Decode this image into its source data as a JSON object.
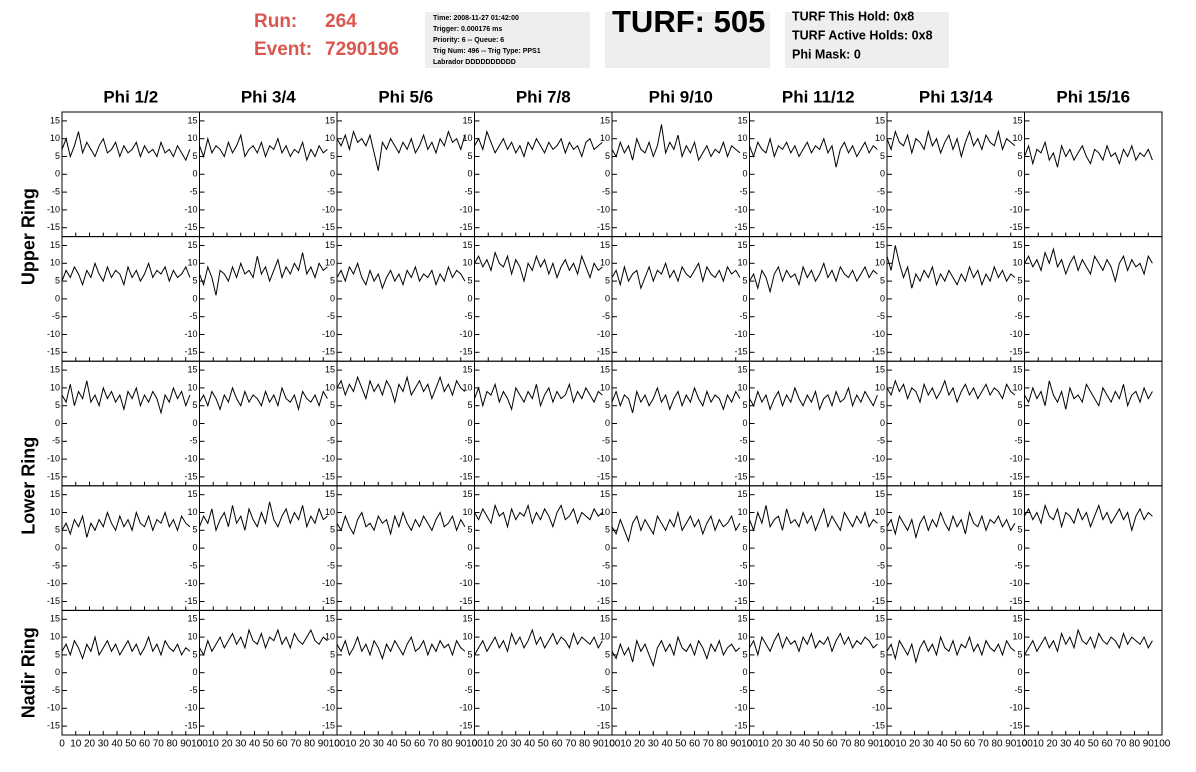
{
  "header": {
    "run_label": "Run:",
    "run": "264",
    "event_label": "Event:",
    "event": "7290196",
    "info": [
      "Time: 2008-11-27 01:42:00",
      "Trigger: 0.000176 ms",
      "Priority: 6 -- Queue: 6",
      "Trig Num: 496 -- Trig Type: PPS1",
      "Labrador DDDDDDDDDD"
    ],
    "turf": "TURF: 505",
    "holds": [
      "TURF This Hold: 0x8",
      "TURF Active Holds: 0x8",
      "Phi Mask: 0"
    ]
  },
  "grid": {
    "columns": [
      "Phi 1/2",
      "Phi 3/4",
      "Phi 5/6",
      "Phi 7/8",
      "Phi 9/10",
      "Phi 11/12",
      "Phi 13/14",
      "Phi 15/16"
    ],
    "rows": [
      "Upper Ring",
      "Lower Ring",
      "Nadir Ring"
    ],
    "xlim": [
      0,
      100
    ],
    "xticks": [
      0,
      10,
      20,
      30,
      40,
      50,
      60,
      70,
      80,
      90,
      100
    ],
    "ylim": [
      -17.5,
      17.5
    ],
    "yticks": [
      -15,
      -10,
      -5,
      0,
      5,
      10,
      15
    ],
    "x": [
      0,
      3,
      6,
      9,
      12,
      15,
      18,
      21,
      24,
      27,
      30,
      33,
      36,
      39,
      42,
      45,
      48,
      51,
      54,
      57,
      60,
      63,
      66,
      69,
      72,
      75,
      78,
      81,
      84,
      87,
      90,
      93
    ],
    "traces": [
      [
        7,
        10,
        5,
        8,
        12,
        6,
        9,
        7,
        5,
        8,
        10,
        6,
        7,
        9,
        5,
        8,
        6,
        7,
        9,
        5,
        8,
        6,
        7,
        5,
        9,
        6,
        7,
        5,
        8,
        6,
        4,
        7
      ],
      [
        8,
        5,
        10,
        6,
        8,
        7,
        5,
        9,
        6,
        8,
        11,
        5,
        7,
        8,
        6,
        9,
        5,
        8,
        7,
        10,
        6,
        8,
        5,
        7,
        6,
        9,
        4,
        7,
        5,
        8,
        6,
        7
      ],
      [
        10,
        8,
        11,
        7,
        12,
        9,
        10,
        8,
        11,
        6,
        1,
        9,
        7,
        10,
        8,
        6,
        9,
        7,
        10,
        6,
        8,
        11,
        7,
        9,
        6,
        10,
        8,
        12,
        9,
        10,
        7,
        11
      ],
      [
        8,
        10,
        7,
        12,
        9,
        6,
        8,
        10,
        7,
        9,
        6,
        8,
        5,
        9,
        7,
        10,
        8,
        6,
        9,
        7,
        8,
        10,
        6,
        9,
        7,
        8,
        5,
        9,
        10,
        7,
        8,
        9
      ],
      [
        7,
        5,
        9,
        6,
        8,
        4,
        10,
        7,
        6,
        9,
        5,
        8,
        14,
        6,
        9,
        7,
        11,
        5,
        8,
        6,
        9,
        4,
        6,
        8,
        5,
        7,
        6,
        9,
        5,
        8,
        7,
        6
      ],
      [
        8,
        5,
        9,
        7,
        6,
        10,
        5,
        8,
        7,
        9,
        6,
        8,
        5,
        7,
        9,
        6,
        8,
        7,
        10,
        6,
        8,
        2,
        7,
        9,
        6,
        8,
        5,
        7,
        9,
        6,
        8,
        7
      ],
      [
        10,
        7,
        12,
        9,
        8,
        11,
        6,
        10,
        9,
        7,
        12,
        8,
        10,
        6,
        9,
        11,
        7,
        10,
        5,
        9,
        12,
        8,
        10,
        7,
        11,
        9,
        8,
        12,
        7,
        10,
        9,
        8
      ],
      [
        5,
        8,
        3,
        7,
        6,
        9,
        4,
        6,
        2,
        8,
        5,
        7,
        4,
        6,
        8,
        5,
        3,
        7,
        6,
        4,
        8,
        5,
        6,
        3,
        7,
        5,
        8,
        4,
        6,
        5,
        7,
        4
      ],
      [
        5,
        8,
        6,
        9,
        7,
        4,
        8,
        6,
        10,
        7,
        5,
        9,
        6,
        8,
        7,
        4,
        9,
        6,
        8,
        5,
        7,
        10,
        6,
        8,
        7,
        9,
        5,
        8,
        6,
        7,
        9,
        6
      ],
      [
        7,
        4,
        9,
        6,
        1,
        8,
        7,
        5,
        9,
        6,
        10,
        7,
        8,
        6,
        12,
        7,
        9,
        5,
        8,
        11,
        6,
        9,
        7,
        10,
        8,
        13,
        7,
        9,
        6,
        10,
        8,
        9
      ],
      [
        6,
        8,
        5,
        9,
        7,
        10,
        6,
        4,
        8,
        5,
        7,
        3,
        6,
        8,
        5,
        7,
        4,
        8,
        6,
        9,
        5,
        7,
        6,
        8,
        4,
        7,
        5,
        9,
        6,
        8,
        7,
        5
      ],
      [
        10,
        12,
        9,
        11,
        8,
        13,
        10,
        9,
        12,
        7,
        11,
        9,
        5,
        10,
        8,
        12,
        9,
        11,
        7,
        10,
        6,
        9,
        11,
        8,
        10,
        7,
        12,
        9,
        6,
        10,
        8,
        9
      ],
      [
        6,
        8,
        4,
        9,
        5,
        7,
        8,
        3,
        6,
        9,
        5,
        8,
        7,
        10,
        6,
        8,
        5,
        9,
        7,
        6,
        8,
        10,
        5,
        9,
        7,
        6,
        8,
        5,
        9,
        7,
        8,
        6
      ],
      [
        5,
        7,
        3,
        8,
        6,
        2,
        7,
        9,
        5,
        8,
        6,
        7,
        4,
        9,
        6,
        8,
        5,
        7,
        10,
        6,
        8,
        5,
        9,
        7,
        6,
        8,
        5,
        7,
        9,
        6,
        8,
        7
      ],
      [
        12,
        8,
        15,
        10,
        6,
        9,
        3,
        7,
        5,
        8,
        6,
        9,
        4,
        7,
        5,
        8,
        6,
        4,
        7,
        5,
        9,
        6,
        8,
        4,
        7,
        5,
        9,
        6,
        8,
        5,
        7,
        6
      ],
      [
        10,
        12,
        9,
        11,
        8,
        13,
        10,
        14,
        9,
        11,
        7,
        10,
        12,
        8,
        11,
        9,
        7,
        12,
        10,
        8,
        11,
        9,
        5,
        10,
        12,
        8,
        11,
        9,
        10,
        7,
        12,
        10
      ],
      [
        8,
        6,
        11,
        5,
        9,
        7,
        12,
        6,
        8,
        5,
        10,
        7,
        9,
        6,
        8,
        4,
        9,
        7,
        10,
        5,
        8,
        6,
        9,
        7,
        3,
        8,
        6,
        10,
        7,
        9,
        5,
        8
      ],
      [
        6,
        8,
        5,
        9,
        7,
        4,
        8,
        6,
        10,
        7,
        5,
        9,
        6,
        8,
        7,
        5,
        9,
        6,
        8,
        5,
        10,
        7,
        6,
        8,
        4,
        9,
        7,
        6,
        8,
        5,
        9,
        7
      ],
      [
        10,
        12,
        8,
        11,
        9,
        13,
        10,
        7,
        12,
        9,
        11,
        8,
        12,
        10,
        6,
        11,
        9,
        13,
        8,
        10,
        12,
        9,
        11,
        7,
        10,
        13,
        9,
        11,
        8,
        12,
        10,
        9
      ],
      [
        7,
        10,
        5,
        9,
        8,
        11,
        6,
        9,
        7,
        4,
        10,
        8,
        6,
        9,
        7,
        11,
        5,
        8,
        10,
        6,
        9,
        7,
        8,
        11,
        6,
        9,
        7,
        10,
        8,
        6,
        9,
        8
      ],
      [
        6,
        9,
        5,
        8,
        7,
        3,
        9,
        6,
        8,
        5,
        7,
        10,
        6,
        8,
        4,
        7,
        9,
        5,
        8,
        6,
        10,
        7,
        5,
        9,
        6,
        8,
        7,
        4,
        8,
        6,
        9,
        7
      ],
      [
        7,
        5,
        9,
        6,
        8,
        4,
        7,
        9,
        5,
        8,
        6,
        10,
        7,
        5,
        8,
        6,
        9,
        4,
        7,
        8,
        5,
        9,
        6,
        7,
        10,
        5,
        8,
        6,
        9,
        7,
        5,
        8
      ],
      [
        10,
        8,
        12,
        9,
        11,
        7,
        10,
        9,
        6,
        11,
        8,
        10,
        7,
        9,
        12,
        8,
        10,
        6,
        9,
        11,
        8,
        10,
        7,
        9,
        11,
        8,
        10,
        9,
        7,
        11,
        9,
        8
      ],
      [
        8,
        6,
        10,
        7,
        9,
        5,
        12,
        8,
        6,
        9,
        4,
        10,
        7,
        8,
        6,
        11,
        9,
        7,
        5,
        10,
        8,
        6,
        9,
        7,
        11,
        5,
        8,
        9,
        6,
        10,
        7,
        9
      ],
      [
        5,
        7,
        4,
        8,
        6,
        9,
        3,
        7,
        5,
        8,
        6,
        10,
        7,
        5,
        9,
        6,
        8,
        5,
        10,
        7,
        6,
        9,
        5,
        8,
        7,
        10,
        6,
        8,
        5,
        9,
        7,
        6
      ],
      [
        6,
        9,
        7,
        11,
        5,
        8,
        10,
        6,
        12,
        7,
        9,
        5,
        11,
        8,
        6,
        10,
        7,
        13,
        8,
        6,
        9,
        11,
        7,
        10,
        8,
        12,
        6,
        9,
        7,
        11,
        8,
        9
      ],
      [
        7,
        5,
        9,
        6,
        4,
        8,
        10,
        6,
        7,
        5,
        9,
        7,
        8,
        4,
        9,
        6,
        10,
        7,
        5,
        8,
        6,
        9,
        7,
        5,
        8,
        10,
        6,
        7,
        9,
        5,
        8,
        6
      ],
      [
        10,
        8,
        11,
        9,
        7,
        12,
        9,
        10,
        6,
        11,
        8,
        10,
        9,
        12,
        7,
        10,
        8,
        11,
        9,
        6,
        10,
        12,
        8,
        9,
        11,
        7,
        10,
        9,
        8,
        11,
        9,
        10
      ],
      [
        6,
        4,
        8,
        5,
        2,
        7,
        9,
        5,
        8,
        6,
        4,
        9,
        7,
        5,
        8,
        6,
        10,
        5,
        7,
        9,
        6,
        8,
        4,
        7,
        9,
        5,
        8,
        6,
        7,
        9,
        5,
        7
      ],
      [
        8,
        5,
        10,
        7,
        12,
        6,
        8,
        9,
        5,
        11,
        7,
        8,
        6,
        10,
        7,
        9,
        5,
        8,
        11,
        6,
        9,
        7,
        5,
        10,
        8,
        6,
        9,
        7,
        10,
        6,
        8,
        7
      ],
      [
        6,
        8,
        4,
        9,
        7,
        5,
        8,
        3,
        7,
        9,
        5,
        8,
        6,
        10,
        7,
        5,
        9,
        6,
        8,
        4,
        10,
        7,
        6,
        9,
        5,
        8,
        7,
        9,
        6,
        8,
        5,
        7
      ],
      [
        9,
        11,
        8,
        10,
        7,
        12,
        9,
        8,
        11,
        6,
        10,
        9,
        7,
        11,
        8,
        10,
        6,
        9,
        12,
        8,
        10,
        7,
        9,
        11,
        8,
        10,
        5,
        9,
        11,
        8,
        10,
        9
      ],
      [
        6,
        8,
        5,
        9,
        7,
        4,
        8,
        6,
        10,
        5,
        7,
        9,
        6,
        8,
        5,
        7,
        9,
        6,
        8,
        5,
        7,
        10,
        6,
        8,
        5,
        9,
        7,
        6,
        8,
        5,
        7,
        6
      ],
      [
        7,
        5,
        9,
        6,
        8,
        10,
        7,
        9,
        11,
        8,
        10,
        7,
        12,
        9,
        8,
        11,
        7,
        10,
        9,
        12,
        8,
        10,
        7,
        11,
        9,
        8,
        10,
        12,
        9,
        8,
        10,
        9
      ],
      [
        8,
        6,
        9,
        5,
        7,
        10,
        6,
        8,
        5,
        9,
        7,
        4,
        8,
        6,
        9,
        7,
        5,
        8,
        10,
        6,
        7,
        9,
        5,
        8,
        6,
        9,
        7,
        8,
        5,
        9,
        7,
        6
      ],
      [
        5,
        7,
        9,
        6,
        8,
        10,
        7,
        9,
        6,
        11,
        8,
        10,
        7,
        9,
        12,
        8,
        10,
        7,
        9,
        11,
        8,
        10,
        9,
        7,
        11,
        8,
        10,
        9,
        8,
        10,
        7,
        9
      ],
      [
        6,
        4,
        8,
        5,
        7,
        3,
        9,
        6,
        8,
        5,
        2,
        7,
        9,
        6,
        8,
        5,
        10,
        7,
        6,
        8,
        5,
        9,
        7,
        4,
        8,
        6,
        9,
        5,
        7,
        8,
        6,
        7
      ],
      [
        7,
        9,
        5,
        10,
        8,
        6,
        9,
        11,
        7,
        10,
        8,
        9,
        6,
        10,
        8,
        11,
        7,
        9,
        8,
        10,
        6,
        9,
        11,
        8,
        10,
        7,
        9,
        8,
        10,
        9,
        7,
        8
      ],
      [
        6,
        8,
        4,
        9,
        7,
        5,
        8,
        3,
        7,
        9,
        6,
        8,
        5,
        10,
        7,
        6,
        9,
        5,
        8,
        7,
        10,
        6,
        8,
        5,
        9,
        7,
        6,
        8,
        5,
        9,
        7,
        6
      ],
      [
        5,
        7,
        9,
        6,
        8,
        10,
        7,
        9,
        6,
        11,
        8,
        10,
        7,
        12,
        9,
        8,
        10,
        7,
        11,
        9,
        8,
        10,
        9,
        7,
        11,
        8,
        10,
        9,
        8,
        10,
        7,
        9
      ]
    ]
  }
}
